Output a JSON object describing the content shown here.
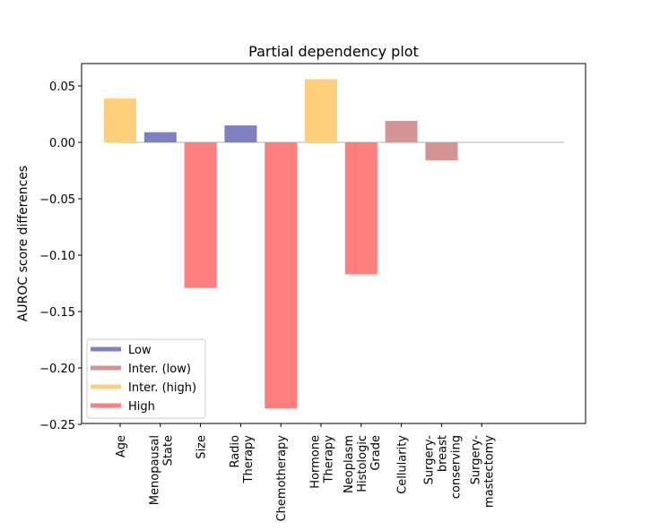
{
  "chart_data": {
    "type": "bar",
    "title": "Partial dependency plot",
    "xlabel": "",
    "ylabel": "AUROC score differences",
    "ylim": [
      -0.25,
      0.07
    ],
    "yticks": [
      0.05,
      0.0,
      -0.05,
      -0.1,
      -0.15,
      -0.2,
      -0.25
    ],
    "ytick_labels": [
      "0.05",
      "0.00",
      "−0.05",
      "−0.10",
      "−0.15",
      "−0.20",
      "−0.25"
    ],
    "grid": false,
    "legend_position": "lower-left",
    "categories": [
      {
        "lines": [
          "Age"
        ]
      },
      {
        "lines": [
          "Menopausal",
          "State"
        ]
      },
      {
        "lines": [
          "Size"
        ]
      },
      {
        "lines": [
          "Radio",
          "Therapy"
        ]
      },
      {
        "lines": [
          "Chemotherapy"
        ]
      },
      {
        "lines": [
          "Hormone",
          "Therapy"
        ]
      },
      {
        "lines": [
          "Neoplasm",
          "Histologic",
          "Grade"
        ]
      },
      {
        "lines": [
          "Cellularity"
        ]
      },
      {
        "lines": [
          "Surgery-",
          "breast",
          "conserving"
        ]
      },
      {
        "lines": [
          "Surgery-",
          "mastectomy"
        ]
      }
    ],
    "values": [
      0.039,
      0.009,
      -0.129,
      0.015,
      -0.236,
      0.056,
      -0.117,
      0.019,
      -0.016,
      0.0
    ],
    "levels": [
      "inter_high",
      "low",
      "high",
      "low",
      "high",
      "inter_high",
      "high",
      "inter_low",
      "inter_low",
      "inter_low"
    ],
    "legend": [
      {
        "key": "low",
        "label": "Low",
        "color": "#8080c0"
      },
      {
        "key": "inter_low",
        "label": "Inter. (low)",
        "color": "#d49494"
      },
      {
        "key": "inter_high",
        "label": "Inter. (high)",
        "color": "#ffd07c"
      },
      {
        "key": "high",
        "label": "High",
        "color": "#ff7f7f"
      }
    ],
    "zero_line_color": "#cccccc"
  }
}
